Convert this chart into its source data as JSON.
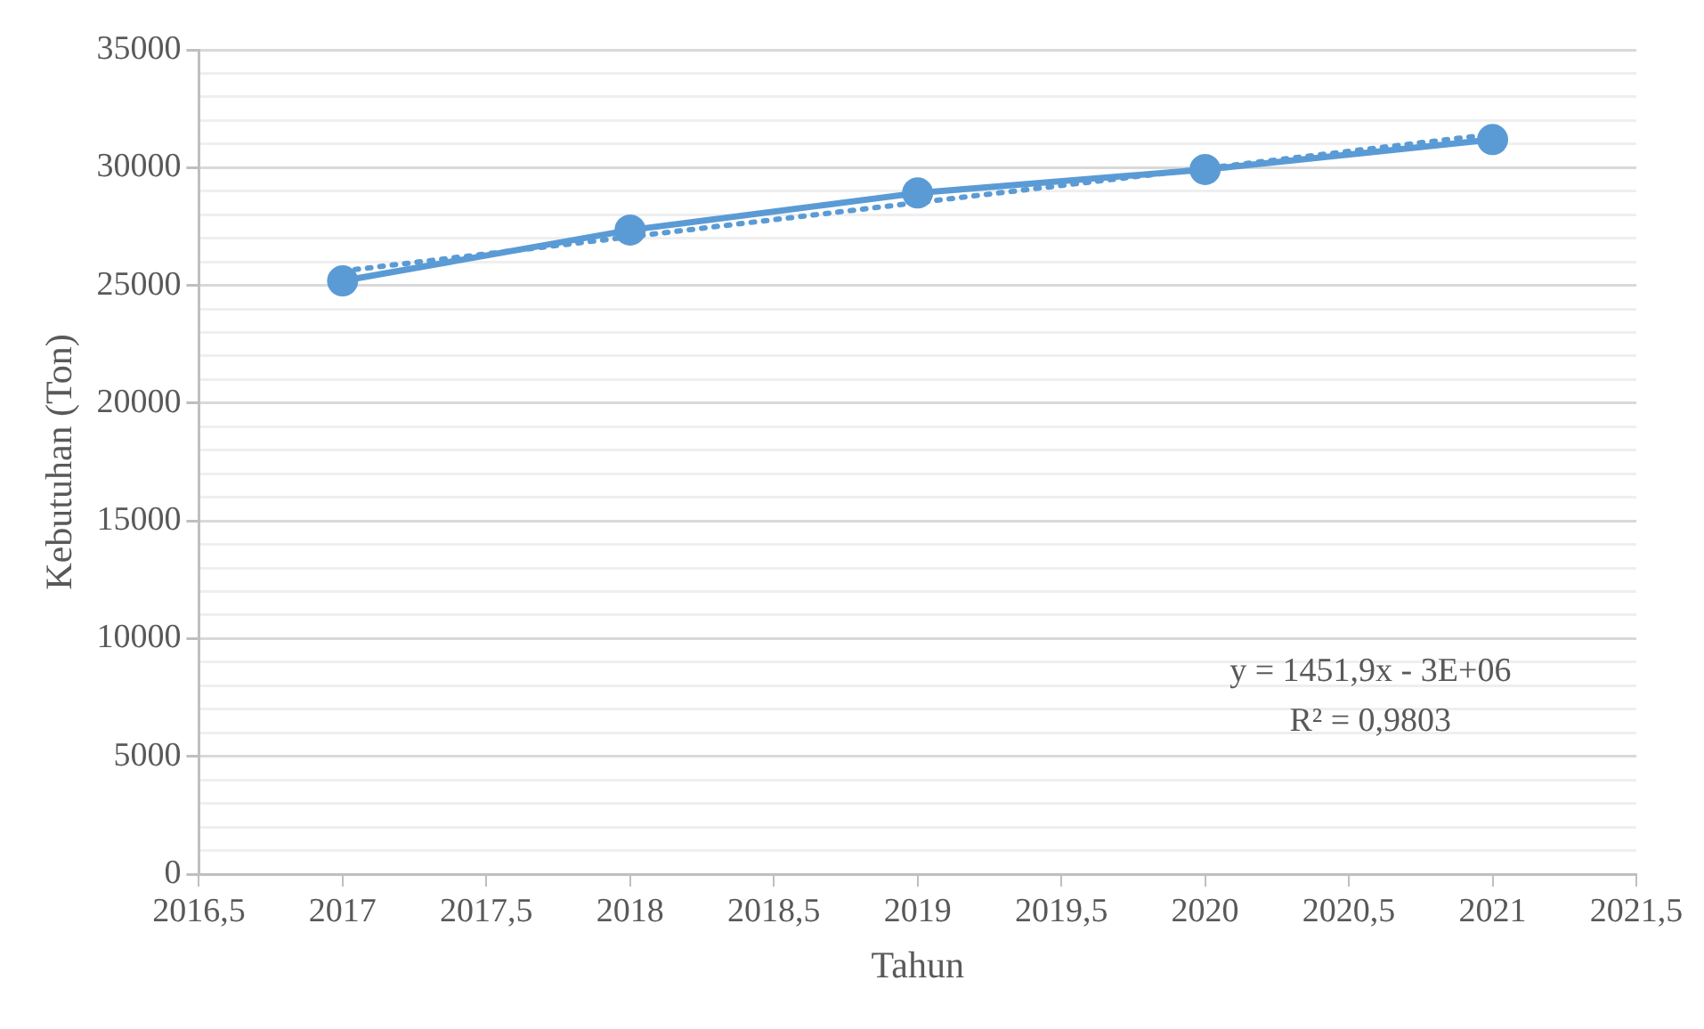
{
  "chart_data": {
    "type": "line",
    "xlabel": "Tahun",
    "ylabel": "Kebutuhan (Ton)",
    "x": [
      2017,
      2018,
      2019,
      2020,
      2021
    ],
    "series": [
      {
        "color": "#5b9bd5",
        "values": [
          25190,
          27350,
          28920,
          29920,
          31190
        ],
        "marker": "circle",
        "line_style": "solid"
      },
      {
        "type": "line",
        "color": "#5b9bd5",
        "x": [
          2017,
          2021
        ],
        "values": [
          25610,
          31418
        ],
        "marker": "none",
        "line_style": "dotted"
      }
    ],
    "xlim": [
      2016.5,
      2021.5
    ],
    "xticks": [
      {
        "value": 2016.5,
        "label": "2016,5"
      },
      2017,
      {
        "value": 2017.5,
        "label": "2017,5"
      },
      2018,
      {
        "value": 2018.5,
        "label": "2018,5"
      },
      2019,
      {
        "value": 2019.5,
        "label": "2019,5"
      },
      2020,
      {
        "value": 2020.5,
        "label": "2020,5"
      },
      2021,
      {
        "value": 2021.5,
        "label": "2021,5"
      }
    ],
    "ylim": [
      0,
      35000
    ],
    "yticks": [
      0,
      {
        "value": 1000,
        "label": null
      },
      {
        "value": 2000,
        "label": null
      },
      {
        "value": 3000,
        "label": null
      },
      {
        "value": 4000,
        "label": null
      },
      5000,
      {
        "value": 6000,
        "label": null
      },
      {
        "value": 7000,
        "label": null
      },
      {
        "value": 8000,
        "label": null
      },
      {
        "value": 9000,
        "label": null
      },
      10000,
      {
        "value": 11000,
        "label": null
      },
      {
        "value": 12000,
        "label": null
      },
      {
        "value": 13000,
        "label": null
      },
      {
        "value": 14000,
        "label": null
      },
      15000,
      {
        "value": 16000,
        "label": null
      },
      {
        "value": 17000,
        "label": null
      },
      {
        "value": 18000,
        "label": null
      },
      {
        "value": 19000,
        "label": null
      },
      20000,
      {
        "value": 21000,
        "label": null
      },
      {
        "value": 22000,
        "label": null
      },
      {
        "value": 23000,
        "label": null
      },
      {
        "value": 24000,
        "label": null
      },
      25000,
      {
        "value": 26000,
        "label": null
      },
      {
        "value": 27000,
        "label": null
      },
      {
        "value": 28000,
        "label": null
      },
      {
        "value": 29000,
        "label": null
      },
      30000,
      {
        "value": 31000,
        "label": null
      },
      {
        "value": 32000,
        "label": null
      },
      {
        "value": 33000,
        "label": null
      },
      {
        "value": 34000,
        "label": null
      },
      35000
    ],
    "grid": "y",
    "annotations": [
      "y = 1451,9x - 3E+06",
      "R² = 0,9803"
    ]
  }
}
